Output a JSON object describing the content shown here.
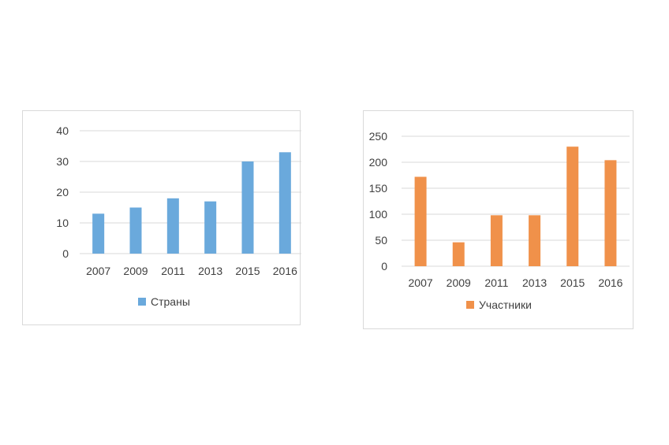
{
  "chart_data": [
    {
      "type": "bar",
      "categories": [
        "2007",
        "2009",
        "2011",
        "2013",
        "2015",
        "2016"
      ],
      "series": [
        {
          "name": "Страны",
          "values": [
            13,
            15,
            18,
            17,
            30,
            33
          ],
          "color": "#6aa9dc"
        }
      ],
      "ylim": [
        0,
        40
      ],
      "yticks": [
        0,
        10,
        20,
        30,
        40
      ],
      "ytick_labels": [
        "0",
        "10",
        "20",
        "30",
        "40"
      ],
      "grid": true,
      "legend_position": "bottom",
      "title": "",
      "xlabel": "",
      "ylabel": ""
    },
    {
      "type": "bar",
      "categories": [
        "2007",
        "2009",
        "2011",
        "2013",
        "2015",
        "2016"
      ],
      "series": [
        {
          "name": "Участники",
          "values": [
            172,
            46,
            98,
            98,
            230,
            204
          ],
          "color": "#f0914a"
        }
      ],
      "ylim": [
        0,
        250
      ],
      "yticks": [
        0,
        50,
        100,
        150,
        200,
        250
      ],
      "ytick_labels": [
        "0",
        "50",
        "100",
        "150",
        "200",
        "250"
      ],
      "grid": true,
      "legend_position": "bottom",
      "title": "",
      "xlabel": "",
      "ylabel": ""
    }
  ],
  "style": {
    "gridline_color": "#d9d9d9",
    "text_color": "#404040",
    "border_color": "#d9d9d9"
  }
}
